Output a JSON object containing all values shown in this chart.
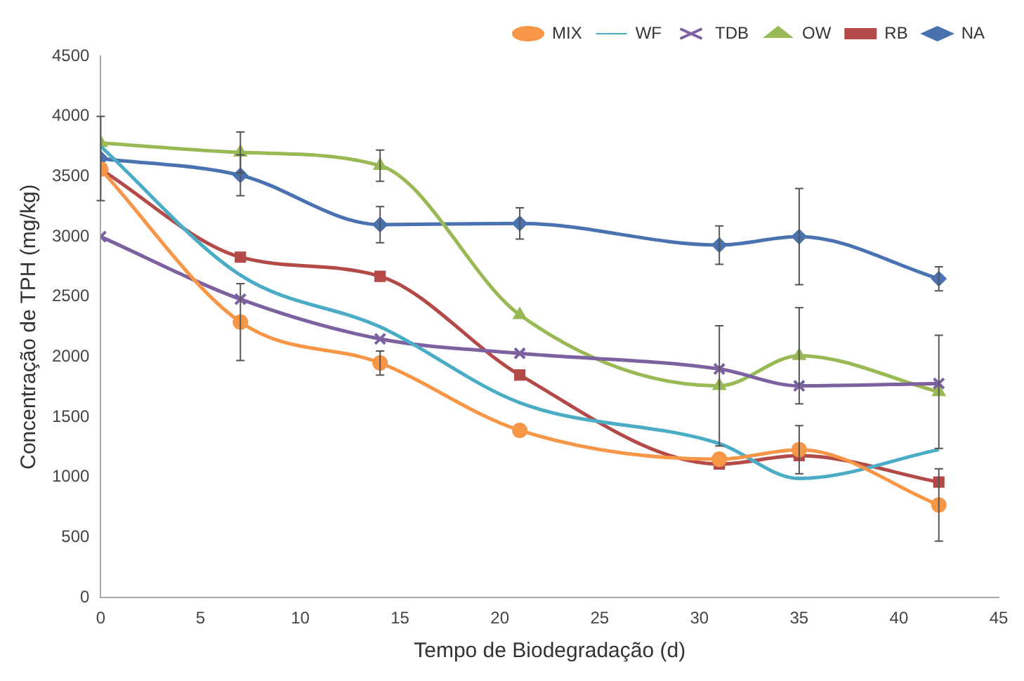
{
  "chart_data": {
    "type": "line",
    "xlabel": "Tempo de Biodegradação (d)",
    "ylabel": "Concentração de TPH (mg/kg)",
    "x": [
      0,
      7,
      14,
      21,
      31,
      35,
      42
    ],
    "xlim": [
      0,
      45
    ],
    "xticks": [
      0,
      5,
      10,
      15,
      20,
      25,
      30,
      35,
      40,
      45
    ],
    "ylim": [
      0,
      4500
    ],
    "yticks": [
      0,
      500,
      1000,
      1500,
      2000,
      2500,
      3000,
      3500,
      4000,
      4500
    ],
    "grid": false,
    "legend": "top right",
    "series": [
      {
        "name": "NA",
        "color": "#4a72b0",
        "marker": "diamond",
        "values": [
          3650,
          3510,
          3100,
          3110,
          2930,
          3000,
          2650
        ],
        "errors": [
          350,
          170,
          150,
          130,
          160,
          400,
          100
        ]
      },
      {
        "name": "RB",
        "color": "#b34a48",
        "marker": "square",
        "values": [
          3560,
          2830,
          2670,
          1850,
          1110,
          1180,
          960
        ]
      },
      {
        "name": "OW",
        "color": "#98b954",
        "marker": "triangle",
        "values": [
          3780,
          3700,
          3590,
          2350,
          1760,
          2010,
          1710
        ],
        "errors": [
          null,
          170,
          130,
          null,
          500,
          400,
          470
        ]
      },
      {
        "name": "TDB",
        "color": "#7d60a0",
        "marker": "cross",
        "values": [
          3000,
          2480,
          2150,
          2030,
          1900,
          1760,
          1780
        ]
      },
      {
        "name": "WF",
        "color": "#4bacc6",
        "marker": "none",
        "values": [
          3750,
          2680,
          2250,
          1620,
          1280,
          990,
          1230
        ]
      },
      {
        "name": "MIX",
        "color": "#f79646",
        "marker": "circle",
        "values": [
          3560,
          2290,
          1950,
          1390,
          1150,
          1230,
          770
        ],
        "errors": [
          null,
          320,
          100,
          null,
          null,
          200,
          300
        ]
      }
    ]
  }
}
